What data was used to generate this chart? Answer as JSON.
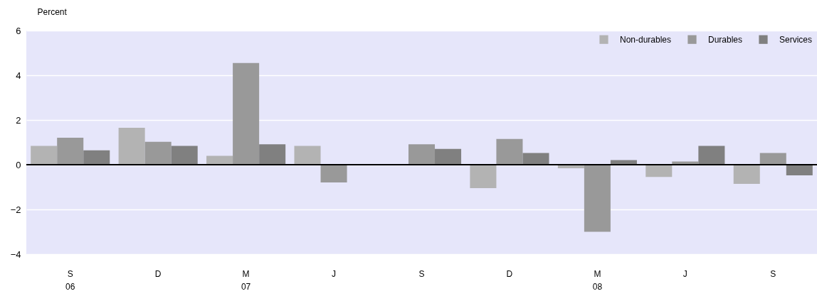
{
  "chart_data": {
    "type": "bar",
    "ylabel": "Percent",
    "categories": [
      "S\n06",
      "D",
      "M\n07",
      "J",
      "S",
      "D",
      "M\n08",
      "J",
      "S"
    ],
    "series": [
      {
        "name": "Non-durables",
        "color": "#b3b3b3",
        "values": [
          0.84,
          1.65,
          0.4,
          0.84,
          null,
          -1.05,
          -0.16,
          -0.55,
          -0.86
        ]
      },
      {
        "name": "Durables",
        "color": "#999999",
        "values": [
          1.21,
          1.02,
          4.55,
          -0.79,
          0.91,
          1.15,
          -3.0,
          0.14,
          0.52
        ]
      },
      {
        "name": "Services",
        "color": "#808080",
        "values": [
          0.64,
          0.84,
          0.91,
          null,
          0.71,
          0.52,
          0.21,
          0.84,
          -0.48
        ]
      }
    ],
    "ylim": [
      -4,
      6
    ],
    "yticks": [
      -4,
      -2,
      0,
      2,
      4,
      6
    ],
    "grid": "y",
    "legend": "top right",
    "ref_lines": [
      {
        "axis": "y",
        "value": 0,
        "color": "#000000"
      }
    ]
  }
}
